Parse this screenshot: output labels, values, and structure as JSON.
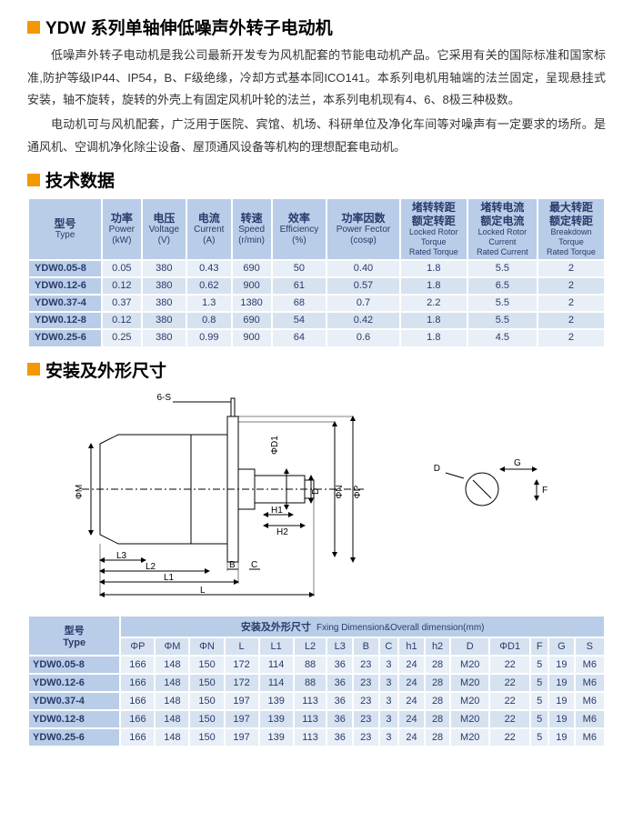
{
  "titles": {
    "main": "YDW 系列单轴伸低噪声外转子电动机",
    "tech": "技术数据",
    "dims": "安装及外形尺寸"
  },
  "intro": {
    "p1": "低噪声外转子电动机是我公司最新开发专为风机配套的节能电动机产品。它采用有关的国际标准和国家标准,防护等级IP44、IP54，B、F级绝缘，冷却方式基本同ICO141。本系列电机用轴端的法兰固定，呈现悬挂式安装，轴不旋转，旋转的外壳上有固定风机叶轮的法兰，本系列电机现有4、6、8极三种极数。",
    "p2": "电动机可与风机配套，广泛用于医院、宾馆、机场、科研单位及净化车间等对噪声有一定要求的场所。是通风机、空调机净化除尘设备、屋顶通风设备等机构的理想配套电动机。"
  },
  "spec_header": {
    "type_cn": "型号",
    "type_en": "Type",
    "power_cn": "功率",
    "power_en": "Power",
    "power_unit": "(kW)",
    "voltage_cn": "电压",
    "voltage_en": "Voltage",
    "voltage_unit": "(V)",
    "current_cn": "电流",
    "current_en": "Current",
    "current_unit": "(A)",
    "speed_cn": "转速",
    "speed_en": "Speed",
    "speed_unit": "(r/min)",
    "eff_cn": "效率",
    "eff_en": "Efficiency",
    "eff_unit": "(%)",
    "pf_cn": "功率因数",
    "pf_en": "Power Fector",
    "pf_unit": "(cosφ)",
    "lrt_cn": "堵转转距\n额定转距",
    "lrt_en": "Locked Rotor\nTorque\nRated Torque",
    "lrc_cn": "堵转电流\n额定电流",
    "lrc_en": "Locked Rotor\nCurrent\nRated Current",
    "bdt_cn": "最大转距\n额定转距",
    "bdt_en": "Breakdown\nTorque\nRated Torque"
  },
  "spec_rows": [
    {
      "model": "YDW0.05-8",
      "power": "0.05",
      "voltage": "380",
      "current": "0.43",
      "speed": "690",
      "eff": "50",
      "pf": "0.40",
      "lrt": "1.8",
      "lrc": "5.5",
      "bdt": "2"
    },
    {
      "model": "YDW0.12-6",
      "power": "0.12",
      "voltage": "380",
      "current": "0.62",
      "speed": "900",
      "eff": "61",
      "pf": "0.57",
      "lrt": "1.8",
      "lrc": "6.5",
      "bdt": "2"
    },
    {
      "model": "YDW0.37-4",
      "power": "0.37",
      "voltage": "380",
      "current": "1.3",
      "speed": "1380",
      "eff": "68",
      "pf": "0.7",
      "lrt": "2.2",
      "lrc": "5.5",
      "bdt": "2"
    },
    {
      "model": "YDW0.12-8",
      "power": "0.12",
      "voltage": "380",
      "current": "0.8",
      "speed": "690",
      "eff": "54",
      "pf": "0.42",
      "lrt": "1.8",
      "lrc": "5.5",
      "bdt": "2"
    },
    {
      "model": "YDW0.25-6",
      "power": "0.25",
      "voltage": "380",
      "current": "0.99",
      "speed": "900",
      "eff": "64",
      "pf": "0.6",
      "lrt": "1.8",
      "lrc": "4.5",
      "bdt": "2"
    }
  ],
  "dim_header": {
    "type_cn": "型号",
    "type_en": "Type",
    "caption_cn": "安装及外形尺寸",
    "caption_en": "Fxing Dimension&Overall dimension(mm)",
    "cols": [
      "ΦP",
      "ΦM",
      "ΦN",
      "L",
      "L1",
      "L2",
      "L3",
      "B",
      "C",
      "h1",
      "h2",
      "D",
      "ΦD1",
      "F",
      "G",
      "S"
    ]
  },
  "dim_rows": [
    {
      "model": "YDW0.05-8",
      "v": [
        "166",
        "148",
        "150",
        "172",
        "114",
        "88",
        "36",
        "23",
        "3",
        "24",
        "28",
        "M20",
        "22",
        "5",
        "19",
        "M6"
      ]
    },
    {
      "model": "YDW0.12-6",
      "v": [
        "166",
        "148",
        "150",
        "172",
        "114",
        "88",
        "36",
        "23",
        "3",
        "24",
        "28",
        "M20",
        "22",
        "5",
        "19",
        "M6"
      ]
    },
    {
      "model": "YDW0.37-4",
      "v": [
        "166",
        "148",
        "150",
        "197",
        "139",
        "113",
        "36",
        "23",
        "3",
        "24",
        "28",
        "M20",
        "22",
        "5",
        "19",
        "M6"
      ]
    },
    {
      "model": "YDW0.12-8",
      "v": [
        "166",
        "148",
        "150",
        "197",
        "139",
        "113",
        "36",
        "23",
        "3",
        "24",
        "28",
        "M20",
        "22",
        "5",
        "19",
        "M6"
      ]
    },
    {
      "model": "YDW0.25-6",
      "v": [
        "166",
        "148",
        "150",
        "197",
        "139",
        "113",
        "36",
        "23",
        "3",
        "24",
        "28",
        "M20",
        "22",
        "5",
        "19",
        "M6"
      ]
    }
  ],
  "diagram": {
    "labels": {
      "phiM": "ΦM",
      "phiN": "ΦN",
      "phiP": "ΦP",
      "phiD1": "ΦD1",
      "D": "D",
      "H1": "H1",
      "H2": "H2",
      "L": "L",
      "L1": "L1",
      "L2": "L2",
      "L3": "L3",
      "B": "B",
      "C": "C",
      "S": "6-S",
      "G": "G",
      "F": "F",
      "Dsmall": "D"
    },
    "stroke": "#000",
    "line_width": 1,
    "font_size": 10
  }
}
